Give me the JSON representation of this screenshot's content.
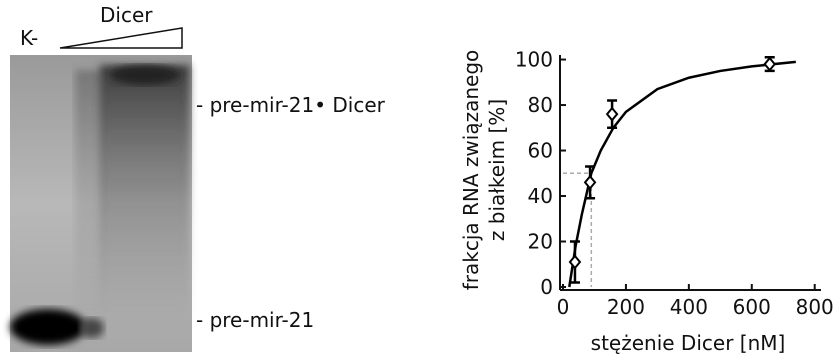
{
  "gel": {
    "lane_label": "K-",
    "gradient_label": "Dicer",
    "band_labels": [
      "- pre-mir-21• Dicer",
      "- pre-mir-21"
    ]
  },
  "chart_data": {
    "type": "scatter",
    "xlabel": "stężenie Dicer [nM]",
    "ylabel": [
      "frakcja RNA związanego",
      "z białkeim  [%]"
    ],
    "xlim": [
      0,
      820
    ],
    "ylim": [
      0,
      102
    ],
    "xticks": [
      0,
      200,
      400,
      600,
      800
    ],
    "yticks": [
      0,
      20,
      40,
      60,
      80,
      100
    ],
    "series": [
      {
        "x": [
          38,
          86,
          156,
          657
        ],
        "values": [
          11,
          46,
          76,
          98
        ],
        "errors": [
          9,
          7,
          6,
          3
        ],
        "color": "#000000"
      },
      {
        "x": [
          20,
          40,
          60,
          90,
          120,
          160,
          200,
          300,
          400,
          500,
          600,
          740
        ],
        "values": [
          0,
          18,
          32,
          50,
          60,
          70,
          77,
          87,
          92,
          95,
          97,
          99
        ],
        "color": "#000000"
      }
    ],
    "guide": {
      "x": 90,
      "y": 50,
      "color": "#aaaaaa"
    }
  }
}
